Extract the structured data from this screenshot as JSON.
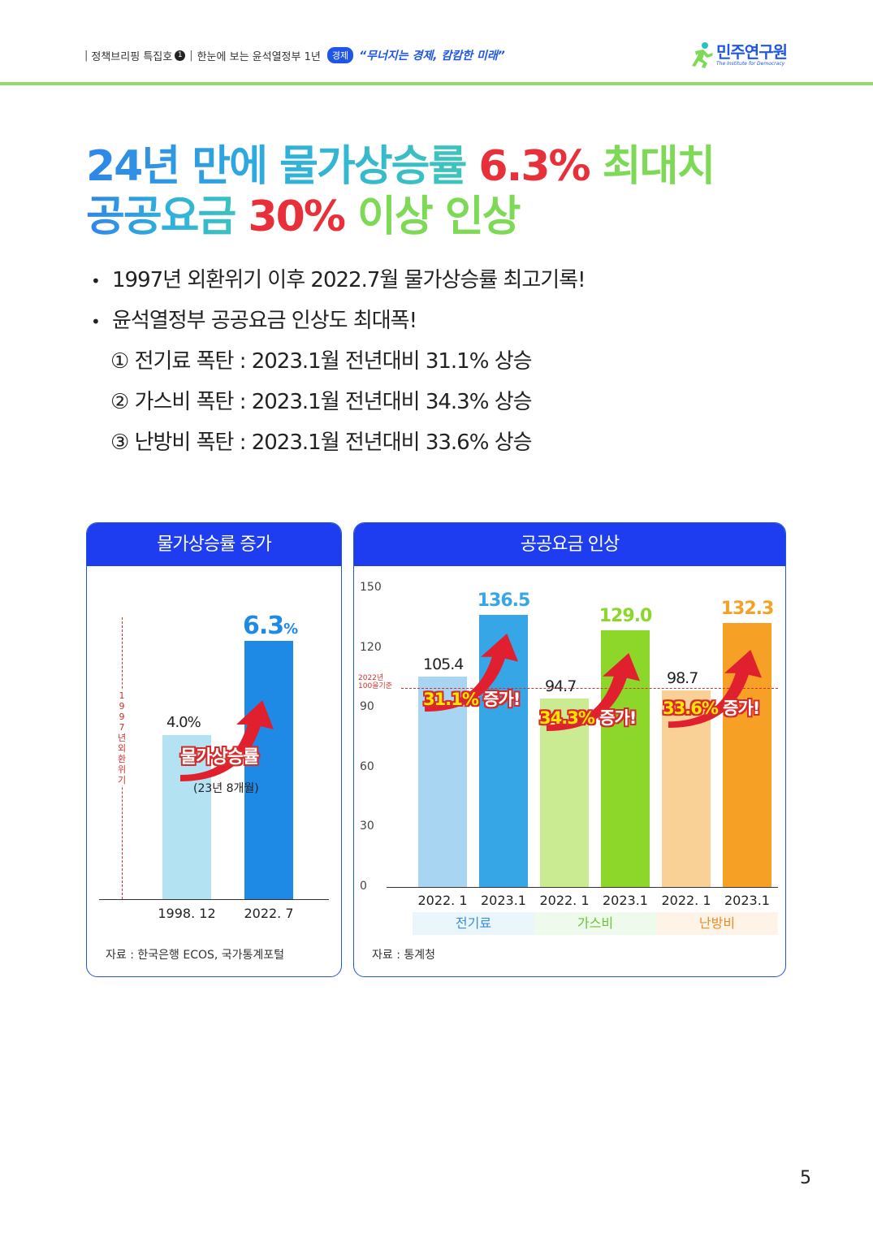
{
  "header": {
    "series": "정책브리핑 특집호",
    "issue_no": "1",
    "subtitle": "한눈에 보는 윤석열정부 1년",
    "badge": "경제",
    "quote": "“무너지는 경제, 캄캄한 미래”",
    "logo_name": "민주연구원",
    "logo_sub": "The Institute for Democracy"
  },
  "title": {
    "line1_a": "24년 만에 물가상승률 ",
    "line1_b": "6.3%",
    "line1_c": " 최대치",
    "line2_a": "공공요금 ",
    "line2_b": "30%",
    "line2_c": " 이상 인상"
  },
  "bullets": [
    "1997년 외환위기 이후 2022.7월 물가상승률 최고기록!",
    "윤석열정부 공공요금 인상도 최대폭!"
  ],
  "sub_items": [
    "① 전기료 폭탄 : 2023.1월 전년대비 31.1% 상승",
    "② 가스비 폭탄 : 2023.1월 전년대비 34.3% 상승",
    "③ 난방비 폭탄 : 2023.1월 전년대비 33.6% 상승"
  ],
  "chart_data": [
    {
      "type": "bar",
      "title": "물가상승률 증가",
      "categories": [
        "1998. 12",
        "2022. 7"
      ],
      "values": [
        4.0,
        6.3
      ],
      "value_labels": [
        "4.0%",
        "6.3"
      ],
      "value_unit": "%",
      "annotation": "물가상승률",
      "annotation_sub": "(23년 8개월)",
      "vertical_note": "1997년 외환위기",
      "colors": [
        "#b3e3f2",
        "#1f8ae6"
      ],
      "source": "자료 : 한국은행 ECOS, 국가통계포털",
      "ylim": [
        0,
        7
      ]
    },
    {
      "type": "bar",
      "title": "공공요금 인상",
      "categories": [
        "2022. 1",
        "2023.1",
        "2022. 1",
        "2023.1",
        "2022. 1",
        "2023.1"
      ],
      "groups": [
        "전기료",
        "가스비",
        "난방비"
      ],
      "values": [
        105.4,
        136.5,
        94.7,
        129.0,
        98.7,
        132.3
      ],
      "value_labels": [
        "105.4",
        "136.5",
        "94.7",
        "129.0",
        "98.7",
        "132.3"
      ],
      "yticks": [
        "0",
        "30",
        "60",
        "90",
        "120",
        "150"
      ],
      "ylim": [
        0,
        150
      ],
      "reference_line": 100,
      "reference_label_1": "2022년",
      "reference_label_2": "100을기준",
      "increase_labels": [
        {
          "pct": "31.1%",
          "word": " 증가!"
        },
        {
          "pct": "34.3%",
          "word": " 증가!"
        },
        {
          "pct": "33.6%",
          "word": " 증가!"
        }
      ],
      "colors": [
        "#a8d6f2",
        "#36a6e6",
        "#cbeb93",
        "#8cd72a",
        "#f9d196",
        "#f7a026"
      ],
      "group_bg": [
        "#eaf5fc",
        "#eefaeb",
        "#fdf3e6"
      ],
      "group_color": [
        "#3a8fd8",
        "#6cc43a",
        "#e88b2a"
      ],
      "source": "자료 : 통계청"
    }
  ],
  "page_number": "5"
}
